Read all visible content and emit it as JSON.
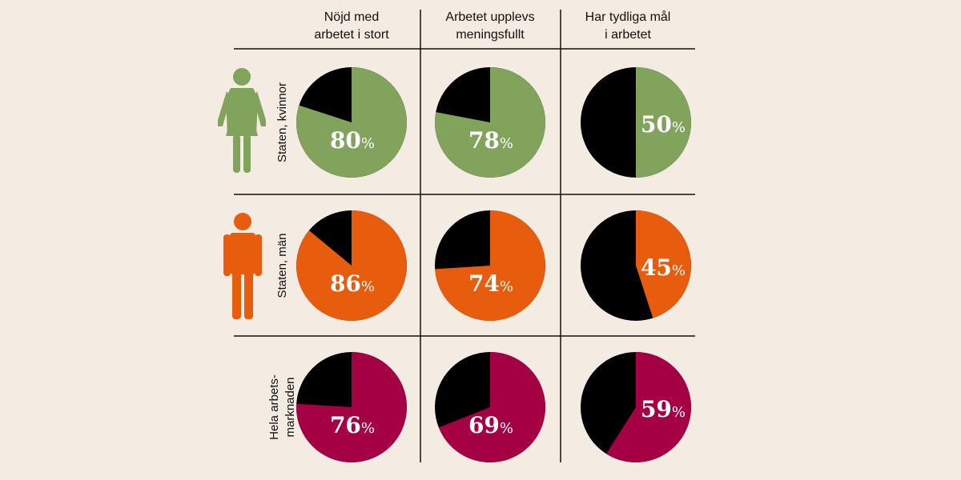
{
  "chart_data": {
    "type": "pie",
    "columns": [
      "Nöjd med\narbetet i stort",
      "Arbetet upplevs\nmeningsfullt",
      "Har tydliga mål\ni arbetet"
    ],
    "rows": [
      {
        "label": "Staten, kvinnor",
        "icon": "woman-icon",
        "color": "#82a35c",
        "values": [
          80,
          78,
          50
        ]
      },
      {
        "label": "Staten, män",
        "icon": "man-icon",
        "color": "#e85c0d",
        "values": [
          86,
          74,
          45
        ]
      },
      {
        "label": "Hela arbets-\nmarknaden",
        "icon": "",
        "color": "#a50044",
        "values": [
          76,
          69,
          59
        ]
      }
    ],
    "remainder_color": "#000000",
    "unit": "%"
  }
}
